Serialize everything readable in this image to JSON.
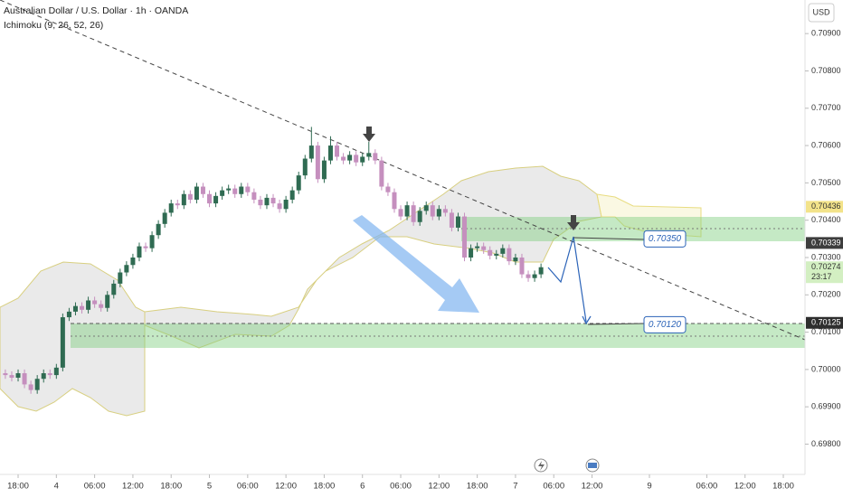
{
  "chart_data": {
    "type": "candlestick",
    "title": "Australian Dollar / U.S. Dollar · 1h · OANDA",
    "subtitle": "Ichimoku (9, 26, 52, 26)",
    "currency": "USD",
    "up_color": "#2f6b52",
    "down_color": "#c58fbe",
    "x": [
      -2,
      -1,
      0,
      1,
      2,
      3,
      4,
      5,
      6,
      7,
      8,
      9,
      10,
      11,
      12,
      13,
      14,
      15,
      16,
      17,
      18,
      19,
      20,
      21,
      22,
      23,
      24,
      25,
      26,
      27,
      28,
      29,
      30,
      31,
      32,
      33,
      34,
      35,
      36,
      37,
      38,
      39,
      40,
      41,
      42,
      43,
      44,
      45,
      46,
      47,
      48,
      49,
      50,
      51,
      52,
      53,
      54,
      55,
      56,
      57,
      58,
      59,
      60,
      61,
      62,
      63,
      64,
      65,
      66,
      67,
      68,
      69,
      70,
      71,
      72,
      73,
      74,
      75,
      76,
      77,
      78,
      79,
      80,
      81,
      82
    ],
    "open": [
      0.6999,
      0.69985,
      0.69978,
      0.6999,
      0.6996,
      0.69945,
      0.69975,
      0.6999,
      0.69985,
      0.70005,
      0.7014,
      0.70155,
      0.7017,
      0.7016,
      0.70185,
      0.70175,
      0.70165,
      0.702,
      0.7023,
      0.7026,
      0.7028,
      0.703,
      0.7033,
      0.70325,
      0.7036,
      0.7039,
      0.7042,
      0.70445,
      0.7044,
      0.7047,
      0.70455,
      0.7049,
      0.7047,
      0.70445,
      0.70465,
      0.7048,
      0.70485,
      0.7047,
      0.7049,
      0.70475,
      0.70455,
      0.7044,
      0.7046,
      0.70445,
      0.7043,
      0.70455,
      0.7048,
      0.7052,
      0.70565,
      0.706,
      0.7051,
      0.7056,
      0.706,
      0.7057,
      0.7056,
      0.70575,
      0.70555,
      0.7057,
      0.7058,
      0.7056,
      0.7049,
      0.70475,
      0.7043,
      0.7041,
      0.7044,
      0.70395,
      0.70425,
      0.7044,
      0.7041,
      0.7043,
      0.7042,
      0.7038,
      0.7041,
      0.703,
      0.70325,
      0.7033,
      0.7032,
      0.70305,
      0.7031,
      0.70325,
      0.7029,
      0.703,
      0.70255,
      0.70245,
      0.70255
    ],
    "high": [
      0.7,
      0.69995,
      0.7,
      0.7,
      0.6997,
      0.69985,
      0.7,
      0.7,
      0.70015,
      0.7015,
      0.70165,
      0.7018,
      0.7018,
      0.70195,
      0.70195,
      0.70185,
      0.7021,
      0.7024,
      0.7027,
      0.7029,
      0.7031,
      0.7034,
      0.7034,
      0.7037,
      0.704,
      0.7043,
      0.70455,
      0.70455,
      0.7048,
      0.7048,
      0.705,
      0.705,
      0.7048,
      0.70475,
      0.7049,
      0.70495,
      0.70495,
      0.705,
      0.705,
      0.70485,
      0.70465,
      0.7047,
      0.7047,
      0.70455,
      0.70465,
      0.7049,
      0.7053,
      0.70575,
      0.7065,
      0.7061,
      0.7057,
      0.70625,
      0.7061,
      0.7058,
      0.70585,
      0.70585,
      0.7058,
      0.7061,
      0.7059,
      0.7057,
      0.705,
      0.70485,
      0.7044,
      0.7045,
      0.7045,
      0.70435,
      0.7045,
      0.7045,
      0.7044,
      0.7044,
      0.7043,
      0.7042,
      0.7042,
      0.70335,
      0.7034,
      0.7034,
      0.7033,
      0.7032,
      0.70335,
      0.70335,
      0.7031,
      0.7031,
      0.70265,
      0.70265,
      0.70284
    ],
    "low": [
      0.69975,
      0.69968,
      0.69968,
      0.6995,
      0.69935,
      0.69935,
      0.69965,
      0.69975,
      0.69975,
      0.69995,
      0.7013,
      0.70145,
      0.7015,
      0.7015,
      0.70165,
      0.70155,
      0.70155,
      0.7019,
      0.7022,
      0.7025,
      0.7027,
      0.7029,
      0.70315,
      0.70315,
      0.7035,
      0.7038,
      0.7041,
      0.7043,
      0.7043,
      0.70445,
      0.70445,
      0.7046,
      0.70435,
      0.70435,
      0.70455,
      0.7047,
      0.7046,
      0.7046,
      0.70465,
      0.70445,
      0.7043,
      0.7043,
      0.70435,
      0.7042,
      0.7042,
      0.70445,
      0.7047,
      0.7051,
      0.70555,
      0.705,
      0.705,
      0.7055,
      0.7056,
      0.7055,
      0.7055,
      0.70545,
      0.70545,
      0.7056,
      0.7055,
      0.7048,
      0.70465,
      0.7042,
      0.704,
      0.704,
      0.70385,
      0.70385,
      0.70415,
      0.704,
      0.704,
      0.7041,
      0.7037,
      0.7037,
      0.7029,
      0.7029,
      0.70315,
      0.7031,
      0.70295,
      0.70295,
      0.703,
      0.7028,
      0.7028,
      0.70245,
      0.70235,
      0.70235,
      0.70245
    ],
    "close": [
      0.69985,
      0.69978,
      0.6999,
      0.6996,
      0.69945,
      0.69975,
      0.6999,
      0.69985,
      0.70005,
      0.7014,
      0.70155,
      0.7017,
      0.7016,
      0.70185,
      0.70175,
      0.70165,
      0.702,
      0.7023,
      0.7026,
      0.7028,
      0.703,
      0.7033,
      0.70325,
      0.7036,
      0.7039,
      0.7042,
      0.70445,
      0.7044,
      0.7047,
      0.70455,
      0.7049,
      0.7047,
      0.70445,
      0.70465,
      0.7048,
      0.70485,
      0.7047,
      0.7049,
      0.70475,
      0.70455,
      0.7044,
      0.7046,
      0.70445,
      0.7043,
      0.70455,
      0.7048,
      0.7052,
      0.70565,
      0.706,
      0.7051,
      0.7056,
      0.706,
      0.7057,
      0.7056,
      0.70575,
      0.70555,
      0.7057,
      0.7058,
      0.7056,
      0.7049,
      0.70475,
      0.7043,
      0.7041,
      0.7044,
      0.70395,
      0.70425,
      0.7044,
      0.7041,
      0.7043,
      0.7042,
      0.7038,
      0.7041,
      0.703,
      0.70325,
      0.7033,
      0.7032,
      0.70305,
      0.7031,
      0.70325,
      0.7029,
      0.703,
      0.70255,
      0.70245,
      0.70255,
      0.70274
    ],
    "xlim": [
      -2.84,
      123.4
    ],
    "ylim": [
      0.69731,
      0.7099
    ],
    "xticks": [
      {
        "value": 0,
        "label": "18:00"
      },
      {
        "value": 6,
        "label": "4"
      },
      {
        "value": 12,
        "label": "06:00"
      },
      {
        "value": 18,
        "label": "12:00"
      },
      {
        "value": 24,
        "label": "18:00"
      },
      {
        "value": 30,
        "label": "5"
      },
      {
        "value": 36,
        "label": "06:00"
      },
      {
        "value": 42,
        "label": "12:00"
      },
      {
        "value": 48,
        "label": "18:00"
      },
      {
        "value": 54,
        "label": "6"
      },
      {
        "value": 60,
        "label": "06:00"
      },
      {
        "value": 66,
        "label": "12:00"
      },
      {
        "value": 72,
        "label": "18:00"
      },
      {
        "value": 78,
        "label": "7"
      },
      {
        "value": 84,
        "label": "06:00"
      },
      {
        "value": 90,
        "label": "12:00"
      },
      {
        "value": 99,
        "label": "9"
      },
      {
        "value": 108,
        "label": "06:00"
      },
      {
        "value": 114,
        "label": "12:00"
      },
      {
        "value": 120,
        "label": "18:00"
      }
    ],
    "yticks": [
      {
        "value": 0.709,
        "label": "0.70900"
      },
      {
        "value": 0.708,
        "label": "0.70800"
      },
      {
        "value": 0.707,
        "label": "0.70700"
      },
      {
        "value": 0.706,
        "label": "0.70600"
      },
      {
        "value": 0.705,
        "label": "0.70500"
      },
      {
        "value": 0.704,
        "label": "0.70400"
      },
      {
        "value": 0.703,
        "label": "0.70300"
      },
      {
        "value": 0.702,
        "label": "0.70200"
      },
      {
        "value": 0.701,
        "label": "0.70100"
      },
      {
        "value": 0.7,
        "label": "0.70000"
      },
      {
        "value": 0.699,
        "label": "0.69900"
      },
      {
        "value": 0.698,
        "label": "0.69800"
      }
    ],
    "price_tags": [
      {
        "value": 0.70436,
        "color": "#f3e38a",
        "text_color": "#333333"
      },
      {
        "value": 0.70339,
        "color": "#3d3d3d",
        "text_color": "#ffffff"
      },
      {
        "value": 0.70274,
        "color": "#d3efc2",
        "text_color": "#333333",
        "countdown": "23:17"
      },
      {
        "value": 0.70125,
        "color": "#2e2e2e",
        "text_color": "#ffffff"
      }
    ],
    "annotations": [
      {
        "value": 0.7035,
        "label": "0.70350"
      },
      {
        "value": 0.7012,
        "label": "0.70120"
      }
    ]
  }
}
